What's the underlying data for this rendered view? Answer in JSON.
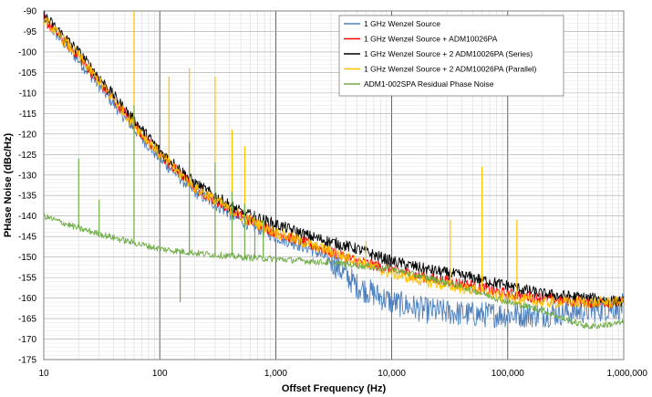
{
  "chart_data": {
    "type": "line",
    "title": "",
    "xlabel": "Offset Frequency  (Hz)",
    "ylabel": "PHase Noise (dBc/Hz)",
    "x_scale": "log",
    "xlim": [
      10,
      1000000
    ],
    "ylim": [
      -175,
      -90
    ],
    "grid": true,
    "legend_position": "top-right",
    "x_ticks": [
      10,
      100,
      1000,
      10000,
      100000,
      1000000
    ],
    "x_tick_labels": [
      "10",
      "100",
      "1,000",
      "10,000",
      "100,000",
      "1,000,000"
    ],
    "y_ticks": [
      -90,
      -95,
      -100,
      -105,
      -110,
      -115,
      -120,
      -125,
      -130,
      -135,
      -140,
      -145,
      -150,
      -155,
      -160,
      -165,
      -170,
      -175
    ],
    "y_tick_labels": [
      "-90",
      "-95",
      "-100",
      "-105",
      "-110",
      "-115",
      "-120",
      "-125",
      "-130",
      "-135",
      "-140",
      "-145",
      "-150",
      "-155",
      "-160",
      "-165",
      "-170",
      "-175"
    ],
    "series": [
      {
        "name": "1 GHz Wenzel Source",
        "color": "#4f81bd",
        "x": [
          10,
          20,
          50,
          100,
          200,
          500,
          1000,
          2000,
          3000,
          5000,
          10000,
          20000,
          50000,
          100000,
          200000,
          500000,
          1000000
        ],
        "y": [
          -92,
          -102,
          -116,
          -126,
          -134,
          -141,
          -145,
          -148,
          -151,
          -157,
          -161,
          -163,
          -164,
          -164,
          -164,
          -163,
          -162
        ],
        "spurs": []
      },
      {
        "name": "1 GHz Wenzel Source + ADM10026PA",
        "color": "#ff0000",
        "x": [
          10,
          20,
          50,
          100,
          200,
          500,
          1000,
          2000,
          5000,
          10000,
          20000,
          50000,
          100000,
          200000,
          500000,
          1000000
        ],
        "y": [
          -92,
          -101,
          -115,
          -125,
          -133,
          -140,
          -144,
          -147,
          -151,
          -153,
          -155,
          -157,
          -159,
          -160,
          -161,
          -161
        ],
        "spurs": []
      },
      {
        "name": "1 GHz Wenzel Source + 2 ADM10026PA (Series)",
        "color": "#000000",
        "x": [
          10,
          20,
          50,
          100,
          200,
          500,
          1000,
          2000,
          5000,
          10000,
          20000,
          50000,
          100000,
          200000,
          500000,
          1000000
        ],
        "y": [
          -91,
          -100,
          -114,
          -124,
          -132,
          -139,
          -142,
          -145,
          -148,
          -151,
          -153,
          -155,
          -157,
          -159,
          -160,
          -161
        ],
        "spurs": []
      },
      {
        "name": "1 GHz Wenzel Source + 2 ADM10026PA (Parallel)",
        "color": "#ffc000",
        "x": [
          10,
          20,
          50,
          100,
          200,
          500,
          1000,
          2000,
          5000,
          10000,
          20000,
          50000,
          100000,
          200000,
          500000,
          1000000
        ],
        "y": [
          -92,
          -101,
          -115,
          -125,
          -133,
          -140,
          -144,
          -147,
          -151,
          -154,
          -156,
          -158,
          -160,
          -161,
          -161,
          -161
        ],
        "spurs": [
          {
            "x": 60,
            "y": -90
          },
          {
            "x": 120,
            "y": -106
          },
          {
            "x": 180,
            "y": -104
          },
          {
            "x": 300,
            "y": -106
          },
          {
            "x": 420,
            "y": -119
          },
          {
            "x": 540,
            "y": -123
          },
          {
            "x": 6000,
            "y": -146
          },
          {
            "x": 32000,
            "y": -141
          },
          {
            "x": 60000,
            "y": -128
          },
          {
            "x": 120000,
            "y": -141
          }
        ]
      },
      {
        "name": "ADM1-002SPA Residual Phase Noise",
        "color": "#70ad47",
        "x": [
          10,
          20,
          50,
          100,
          200,
          500,
          1000,
          2000,
          5000,
          10000,
          20000,
          50000,
          100000,
          200000,
          300000,
          500000,
          1000000
        ],
        "y": [
          -140,
          -143,
          -146,
          -148,
          -149,
          -150,
          -150.5,
          -151,
          -152,
          -153,
          -155,
          -158,
          -161,
          -163,
          -165,
          -167,
          -166
        ],
        "spurs": [
          {
            "x": 20,
            "y": -126
          },
          {
            "x": 30,
            "y": -136
          },
          {
            "x": 60,
            "y": -113
          },
          {
            "x": 150,
            "y": -161
          },
          {
            "x": 180,
            "y": -122
          },
          {
            "x": 300,
            "y": -127
          },
          {
            "x": 420,
            "y": -134
          },
          {
            "x": 540,
            "y": -137
          },
          {
            "x": 660,
            "y": -139
          },
          {
            "x": 780,
            "y": -141
          }
        ]
      }
    ]
  }
}
